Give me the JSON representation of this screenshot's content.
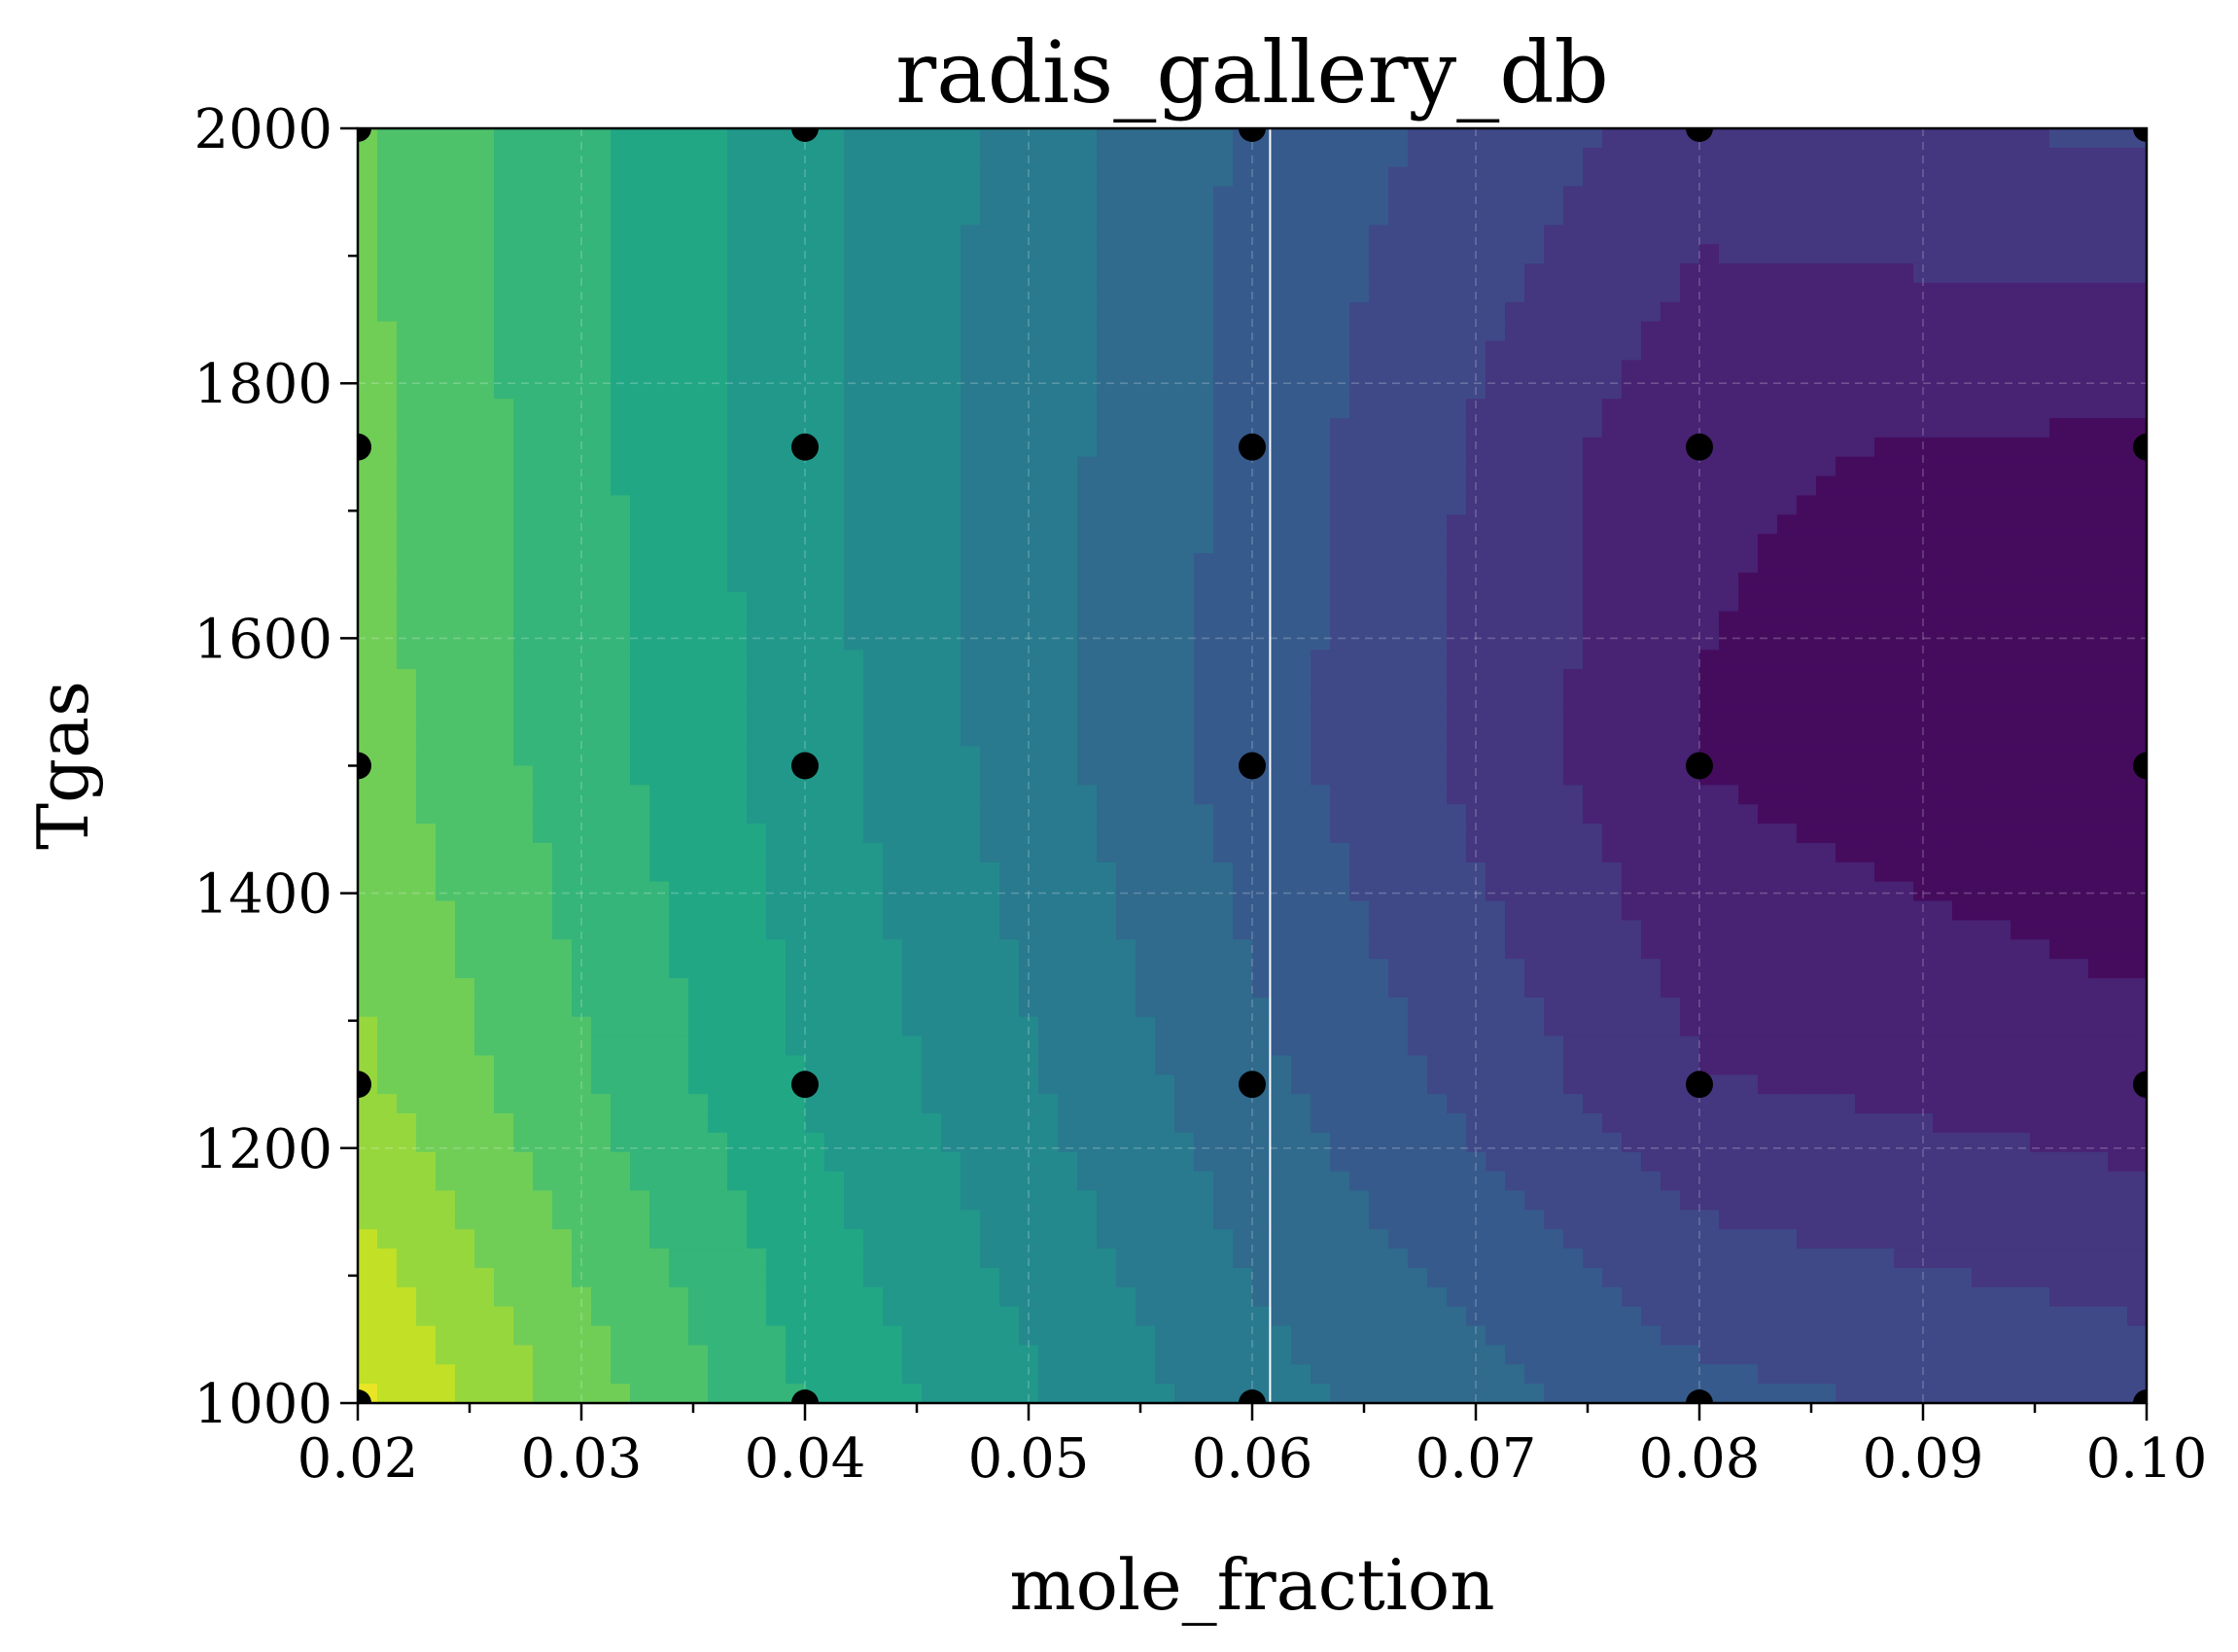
{
  "chart_data": {
    "type": "heatmap",
    "title": "radis_gallery_db",
    "xlabel": "mole_fraction",
    "ylabel": "Tgas",
    "xlim": [
      0.02,
      0.1
    ],
    "ylim": [
      1000,
      2000
    ],
    "x_ticks": [
      "0.02",
      "0.03",
      "0.04",
      "0.05",
      "0.06",
      "0.07",
      "0.08",
      "0.09",
      "0.10"
    ],
    "y_ticks": [
      "1000",
      "1200",
      "1400",
      "1600",
      "1800",
      "2000"
    ],
    "x_minor_step": 0.005,
    "y_minor_step": 100,
    "grid": true,
    "colormap": [
      "#440154",
      "#482475",
      "#414487",
      "#355f8d",
      "#2a788e",
      "#21918c",
      "#22a884",
      "#44bf70",
      "#7ad151",
      "#bddf26",
      "#fde725"
    ],
    "contour_levels": 16,
    "grid_x": [
      0.02,
      0.04,
      0.06,
      0.08,
      0.1
    ],
    "grid_y": [
      1000,
      1250,
      1500,
      1750,
      2000
    ],
    "z": [
      [
        0.95,
        0.62,
        0.4,
        0.27,
        0.22
      ],
      [
        0.83,
        0.56,
        0.33,
        0.13,
        0.09
      ],
      [
        0.78,
        0.53,
        0.28,
        0.06,
        0.0
      ],
      [
        0.77,
        0.52,
        0.29,
        0.07,
        0.05
      ],
      [
        0.76,
        0.52,
        0.3,
        0.16,
        0.2
      ]
    ],
    "vertical_marker_x": 0.0608,
    "sample_points": [
      [
        0.02,
        1000
      ],
      [
        0.04,
        1000
      ],
      [
        0.06,
        1000
      ],
      [
        0.08,
        1000
      ],
      [
        0.1,
        1000
      ],
      [
        0.02,
        1250
      ],
      [
        0.04,
        1250
      ],
      [
        0.06,
        1250
      ],
      [
        0.08,
        1250
      ],
      [
        0.1,
        1250
      ],
      [
        0.02,
        1500
      ],
      [
        0.04,
        1500
      ],
      [
        0.06,
        1500
      ],
      [
        0.08,
        1500
      ],
      [
        0.1,
        1500
      ],
      [
        0.02,
        1750
      ],
      [
        0.04,
        1750
      ],
      [
        0.06,
        1750
      ],
      [
        0.08,
        1750
      ],
      [
        0.1,
        1750
      ],
      [
        0.02,
        2000
      ],
      [
        0.04,
        2000
      ],
      [
        0.06,
        2000
      ],
      [
        0.08,
        2000
      ],
      [
        0.1,
        2000
      ]
    ]
  }
}
